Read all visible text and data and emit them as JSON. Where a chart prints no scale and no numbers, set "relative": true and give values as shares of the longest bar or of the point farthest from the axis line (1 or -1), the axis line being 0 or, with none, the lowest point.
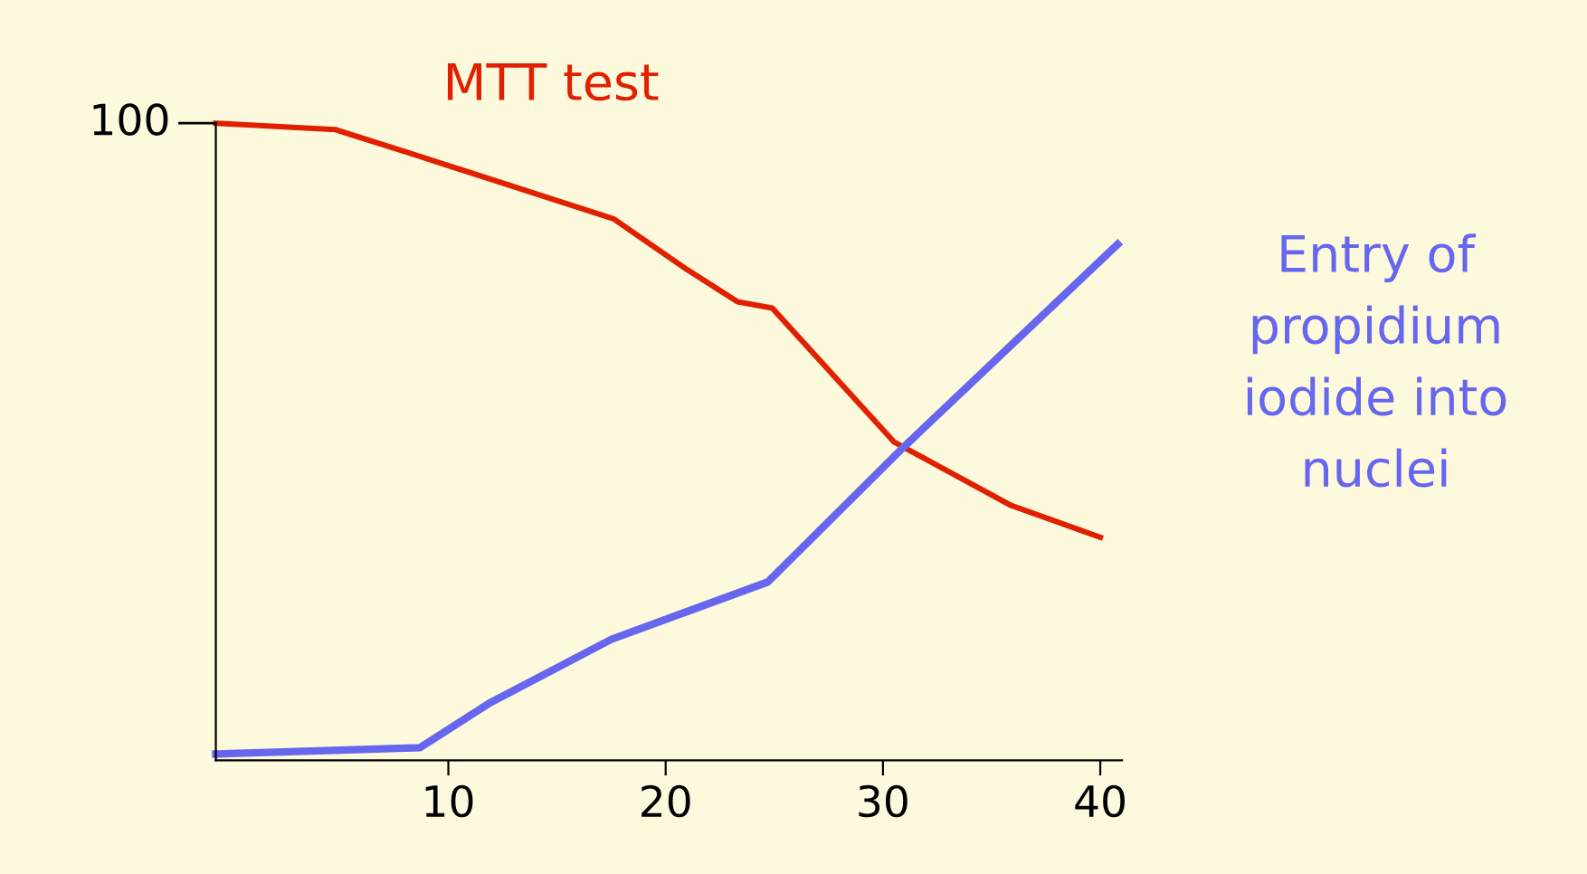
{
  "chart_data": {
    "type": "line",
    "relative": true,
    "xlim": [
      -0.7,
      41
    ],
    "xticks": [
      10,
      20,
      30,
      40
    ],
    "legend": false,
    "grid": false,
    "marker": "none",
    "line_style": "solid",
    "annotations": [
      "100"
    ],
    "series": [
      {
        "name": "MTT test",
        "color": "#e02000",
        "x": [
          -0.7,
          4.8,
          8.5,
          17.6,
          21.0,
          23.3,
          24.9,
          30.5,
          35.9,
          40.0
        ],
        "values": [
          1.0,
          0.99,
          0.95,
          0.85,
          0.77,
          0.72,
          0.71,
          0.5,
          0.4,
          0.35
        ]
      },
      {
        "name": "Entry of\npropidium\niodide into\nnuclei",
        "color": "#6666ee",
        "x": [
          -0.7,
          8.7,
          11.9,
          17.5,
          24.7,
          30.9,
          40.8
        ],
        "values": [
          0.01,
          0.02,
          0.09,
          0.19,
          0.28,
          0.49,
          0.81
        ]
      }
    ]
  }
}
